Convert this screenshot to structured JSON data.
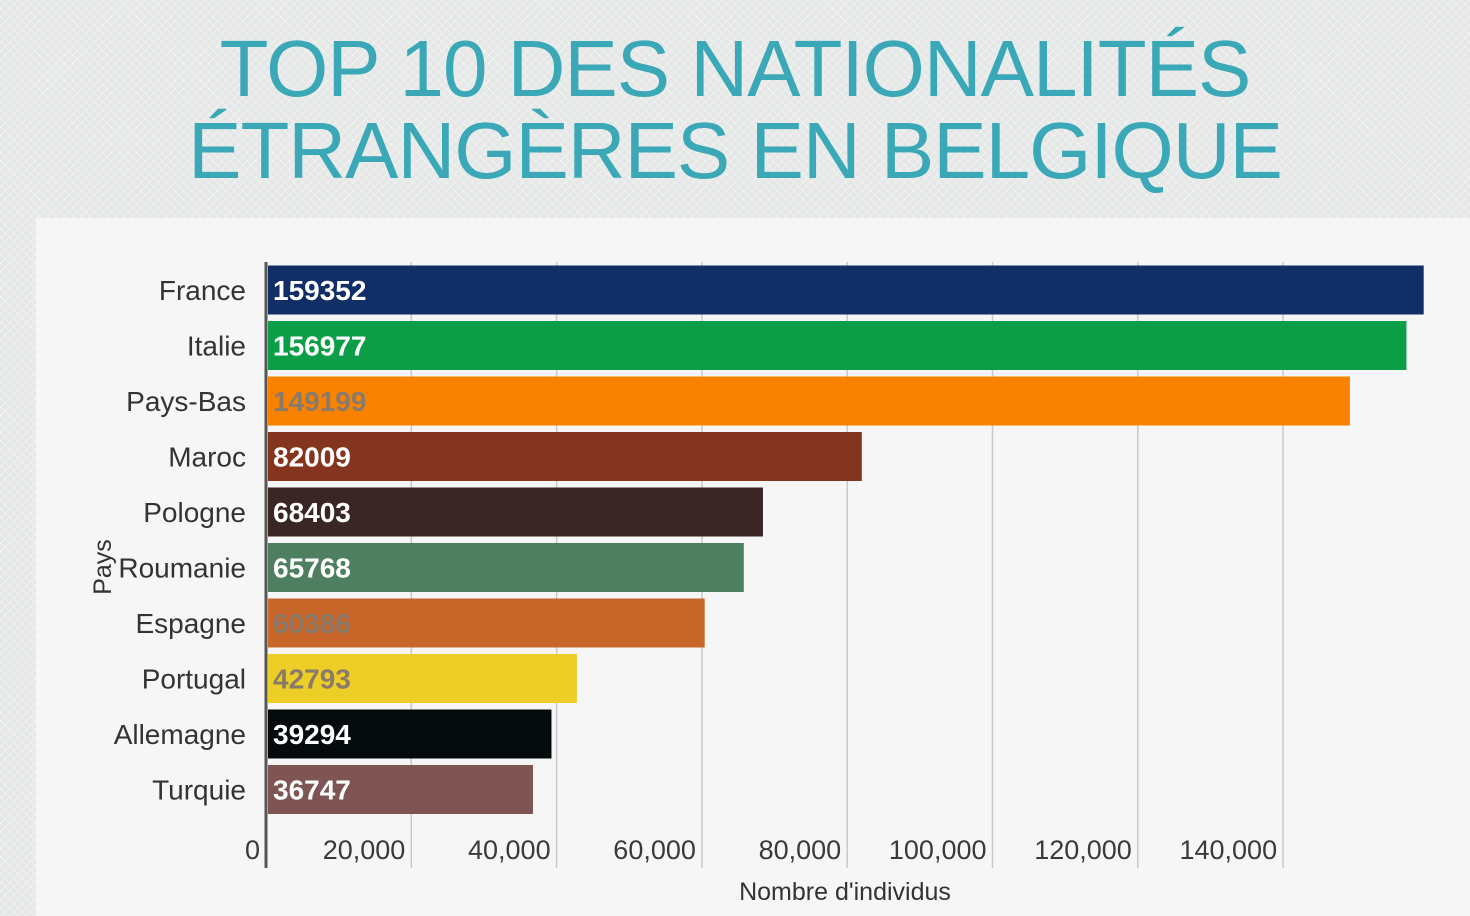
{
  "header": {
    "title_line1": "TOP 10 DES NATIONALITÉS",
    "title_line2": "ÉTRANGÈRES EN BELGIQUE"
  },
  "chart_data": {
    "type": "bar",
    "orientation": "horizontal",
    "xlabel": "Nombre d'individus",
    "ylabel": "Pays",
    "xlim": [
      0,
      160000
    ],
    "x_ticks": [
      0,
      20000,
      40000,
      60000,
      80000,
      100000,
      120000,
      140000
    ],
    "x_tick_labels": [
      "0",
      "20,000",
      "40,000",
      "60,000",
      "80,000",
      "100,000",
      "120,000",
      "140,000"
    ],
    "grid": "vertical",
    "categories": [
      "France",
      "Italie",
      "Pays-Bas",
      "Maroc",
      "Pologne",
      "Roumanie",
      "Espagne",
      "Portugal",
      "Allemagne",
      "Turquie"
    ],
    "values": [
      159352,
      156977,
      149199,
      82009,
      68403,
      65768,
      60386,
      42793,
      39294,
      36747
    ],
    "bar_colors": [
      "#122e66",
      "#0b9e47",
      "#f98200",
      "#85341f",
      "#3b2626",
      "#4f7f61",
      "#c9662a",
      "#ecce27",
      "#050a0d",
      "#7e5553"
    ],
    "data_label_colors": [
      "#ffffff",
      "#ffffff",
      "#8a7a6a",
      "#ffffff",
      "#ffffff",
      "#ffffff",
      "#8a7a6a",
      "#8a7a6a",
      "#ffffff",
      "#ffffff"
    ],
    "data_labels": [
      "159352",
      "156977",
      "149199",
      "82009",
      "68403",
      "65768",
      "60386",
      "42793",
      "39294",
      "36747"
    ]
  }
}
